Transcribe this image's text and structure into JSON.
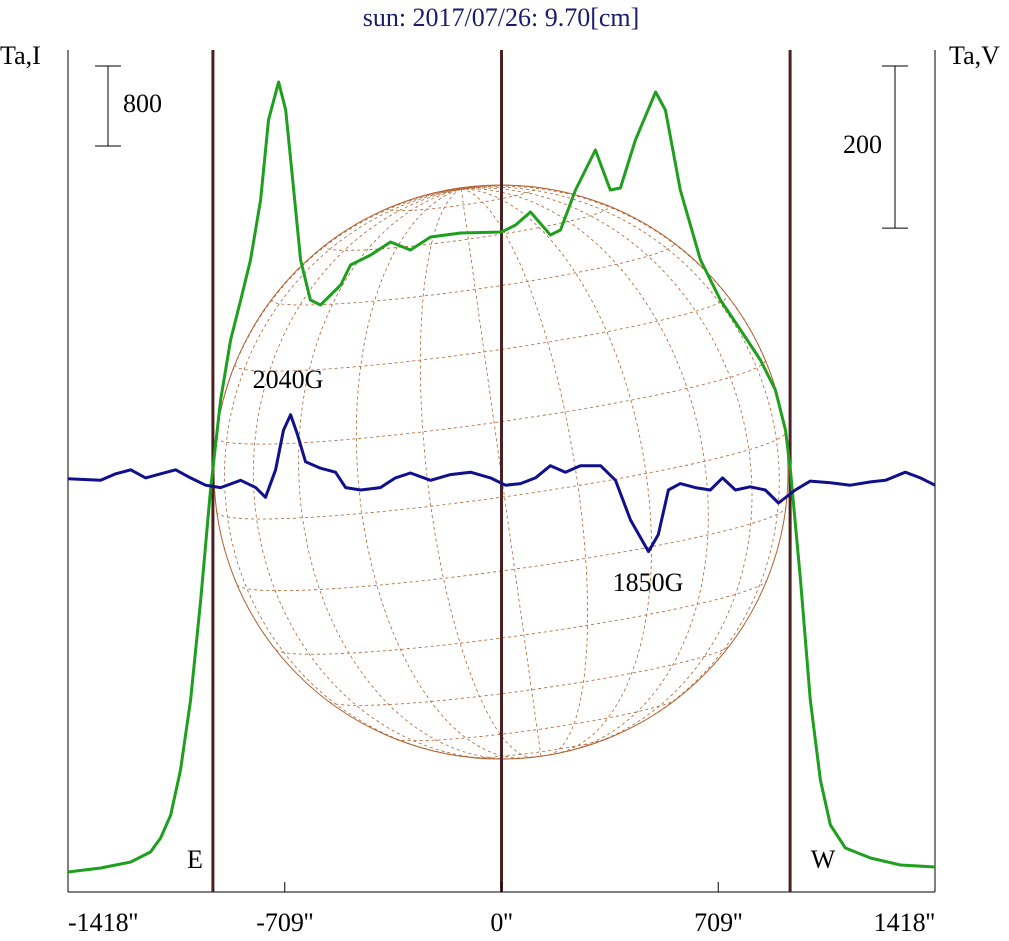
{
  "chart_data": {
    "type": "line",
    "title": "sun: 2017/07/26: 9.70[cm]",
    "ylabel": "Ta,I",
    "y2label": "Ta,V",
    "xlim": [
      -1418,
      1418
    ],
    "xticks": [
      {
        "value": -1418,
        "label": "-1418''"
      },
      {
        "value": -709,
        "label": "-709''"
      },
      {
        "value": 0,
        "label": "0''"
      },
      {
        "value": 709,
        "label": "709''"
      },
      {
        "value": 1418,
        "label": "1418''"
      }
    ],
    "ylim": [
      0,
      8420
    ],
    "y2lim": [
      -506,
      533
    ],
    "vlines": [
      -944,
      0,
      944
    ],
    "scale_bars": [
      {
        "value": 800,
        "axis": "y"
      },
      {
        "value": 200,
        "axis": "y2"
      }
    ],
    "annotations": [
      {
        "text": "E"
      },
      {
        "text": "W"
      },
      {
        "text": "2040G"
      },
      {
        "text": "1850G"
      }
    ],
    "series": [
      {
        "name": "I",
        "color": "#1ea01e",
        "x": [
          -1418,
          -1311,
          -1213,
          -1148,
          -1115,
          -1082,
          -1050,
          -1017,
          -984,
          -952,
          -919,
          -886,
          -853,
          -821,
          -788,
          -762,
          -729,
          -706,
          -683,
          -657,
          -625,
          -592,
          -559,
          -526,
          -494,
          -428,
          -363,
          -298,
          -232,
          -134,
          0,
          46,
          95,
          160,
          193,
          242,
          307,
          356,
          389,
          438,
          504,
          536,
          585,
          651,
          716,
          782,
          847,
          896,
          929,
          945,
          978,
          1010,
          1043,
          1076,
          1125,
          1207,
          1305,
          1418
        ],
        "values": [
          200,
          240,
          300,
          400,
          540,
          770,
          1220,
          1920,
          2920,
          4020,
          4920,
          5520,
          5920,
          6320,
          6920,
          7720,
          8100,
          7820,
          7120,
          6320,
          5920,
          5870,
          5970,
          6070,
          6270,
          6370,
          6500,
          6420,
          6550,
          6590,
          6600,
          6670,
          6800,
          6570,
          6620,
          7020,
          7420,
          7020,
          7040,
          7520,
          8000,
          7820,
          7020,
          6320,
          5920,
          5620,
          5320,
          5020,
          4620,
          4220,
          3120,
          1920,
          1120,
          670,
          440,
          340,
          270,
          250
        ]
      },
      {
        "name": "V",
        "color": "#10108c",
        "axis": "y2",
        "x": [
          -1418,
          -1311,
          -1262,
          -1213,
          -1164,
          -1115,
          -1066,
          -1017,
          -968,
          -919,
          -853,
          -804,
          -772,
          -739,
          -713,
          -690,
          -667,
          -641,
          -592,
          -543,
          -510,
          -461,
          -396,
          -347,
          -298,
          -232,
          -167,
          -101,
          -36,
          13,
          62,
          111,
          160,
          209,
          258,
          324,
          373,
          422,
          481,
          513,
          546,
          585,
          634,
          683,
          723,
          765,
          814,
          863,
          906,
          961,
          1010,
          1076,
          1141,
          1207,
          1256,
          1321,
          1370,
          1418
        ],
        "values": [
          4,
          2,
          10,
          15,
          5,
          10,
          15,
          5,
          -4,
          -7,
          2,
          -7,
          -19,
          15,
          64,
          83,
          58,
          25,
          17,
          12,
          -7,
          -10,
          -7,
          5,
          11,
          2,
          9,
          12,
          5,
          -4,
          -2,
          5,
          20,
          12,
          20,
          20,
          2,
          -47,
          -86,
          -65,
          -10,
          -2,
          -7,
          -10,
          5,
          -10,
          -6,
          -10,
          -26,
          -10,
          1,
          -1,
          -4,
          0,
          2,
          12,
          5,
          -4
        ]
      }
    ]
  }
}
